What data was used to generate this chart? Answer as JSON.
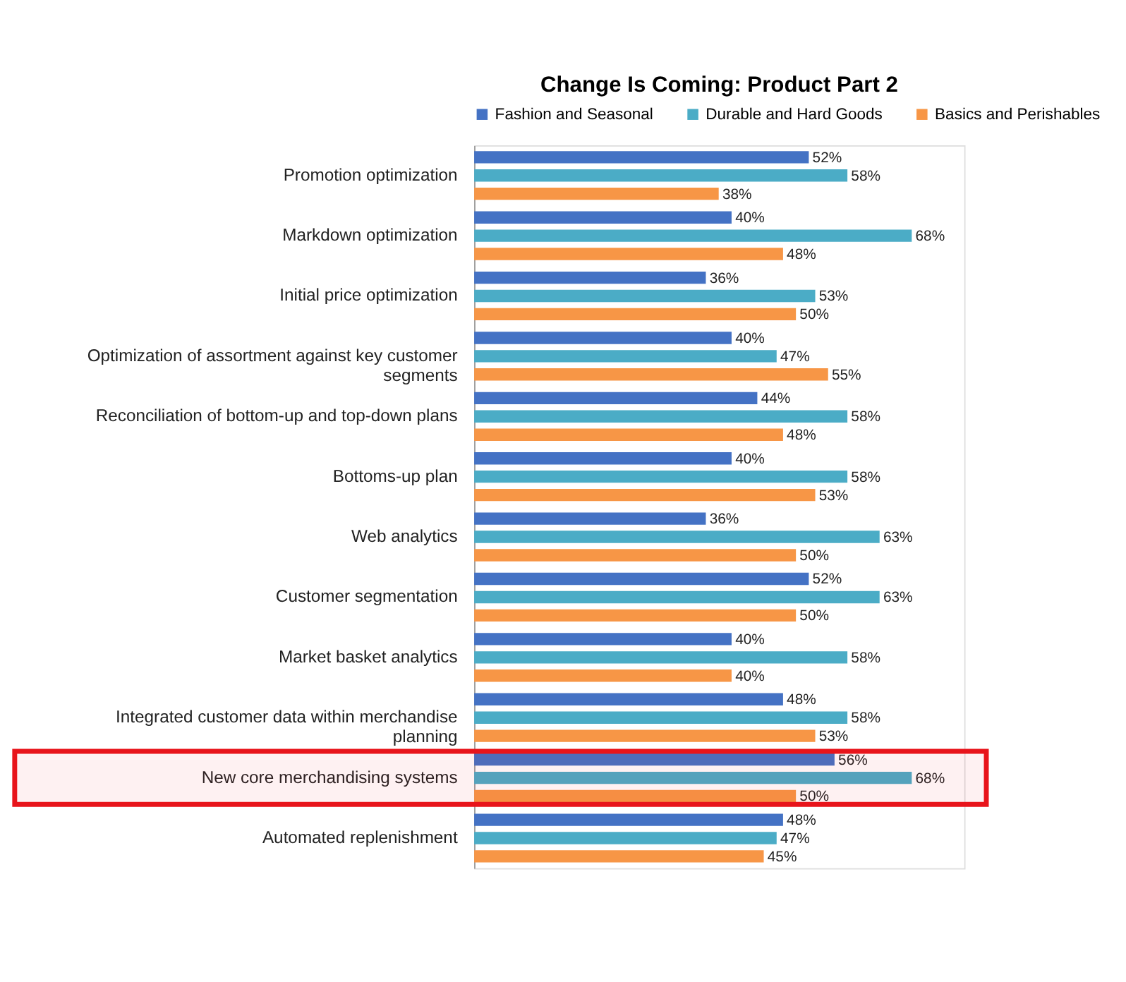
{
  "chart_data": {
    "type": "bar",
    "orientation": "horizontal",
    "title": "Change Is Coming:  Product Part 2",
    "categories": [
      "Promotion optimization",
      "Markdown optimization",
      "Initial price optimization",
      "Optimization of assortment against key customer segments",
      "Reconciliation of bottom-up and top-down plans",
      "Bottoms-up plan",
      "Web analytics",
      "Customer segmentation",
      "Market basket analytics",
      "Integrated customer data within merchandise planning",
      "New core merchandising systems",
      "Automated replenishment"
    ],
    "series": [
      {
        "name": "Fashion and Seasonal",
        "color": "#4472c4",
        "values": [
          52,
          40,
          36,
          40,
          44,
          40,
          36,
          52,
          40,
          48,
          56,
          48
        ],
        "value_labels": [
          "52%",
          "40%",
          "36%",
          "40%",
          "44%",
          "40%",
          "36%",
          "52%",
          "40%",
          "48%",
          "56%",
          "48%"
        ]
      },
      {
        "name": "Durable and Hard Goods",
        "color": "#4bacc6",
        "values": [
          58,
          68,
          53,
          47,
          58,
          58,
          63,
          63,
          58,
          58,
          68,
          47
        ],
        "value_labels": [
          "58%",
          "68%",
          "53%",
          "47%",
          "58%",
          "58%",
          "63%",
          "63%",
          "58%",
          "58%",
          "68%",
          "47%"
        ]
      },
      {
        "name": "Basics and Perishables",
        "color": "#f79646",
        "values": [
          38,
          48,
          50,
          55,
          48,
          53,
          50,
          50,
          40,
          53,
          50,
          45
        ],
        "value_labels": [
          "38%",
          "48%",
          "50%",
          "55%",
          "48%",
          "53%",
          "50%",
          "50%",
          "40%",
          "53%",
          "50%",
          "45%"
        ]
      }
    ],
    "bands": [
      {
        "axis": "y",
        "from": "New core merchandising systems",
        "to": "New core merchandising systems",
        "color": "#e8141b"
      }
    ],
    "legend": "top",
    "grid": false
  }
}
